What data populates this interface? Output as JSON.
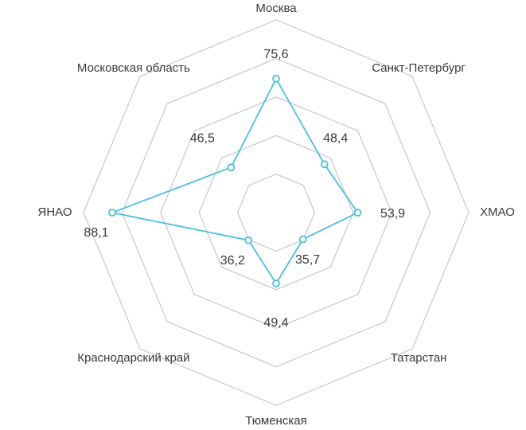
{
  "chart_data": {
    "type": "radar",
    "title": "",
    "categories": [
      "Москва",
      "Санкт-Петербург",
      "ХМАО",
      "Татарстан",
      "Тюменская",
      "Краснодарский край",
      "ЯНАО",
      "Московская область"
    ],
    "series": [
      {
        "values": [
          75.6,
          48.4,
          53.9,
          35.7,
          49.4,
          36.2,
          88.1,
          46.5
        ],
        "labels": [
          "75,6",
          "48,4",
          "53,9",
          "35,7",
          "49,4",
          "36,2",
          "88,1",
          "46,5"
        ],
        "color": "#4bbfe0"
      }
    ],
    "rlim": [
      20,
      100
    ],
    "rings": 5,
    "grid": true,
    "grid_color": "#c8c8c8",
    "legend": "none"
  }
}
